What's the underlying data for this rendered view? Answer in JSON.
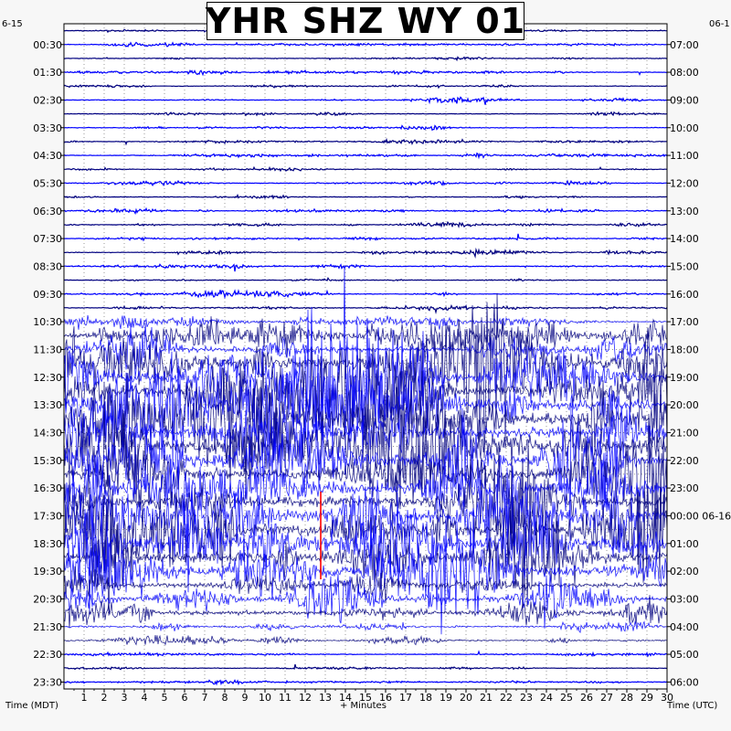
{
  "title": "YHR SHZ WY 01",
  "left_date": "6-15",
  "right_date": "06-1",
  "xlabel": "+ Minutes",
  "left_axis_label": "Time (MDT)",
  "right_axis_label": "Time (UTC)",
  "chart_data": {
    "type": "line",
    "title": "YHR SHZ WY 01",
    "xlabel": "+ Minutes",
    "ylabel_left": "Time (MDT)",
    "ylabel_right": "Time (UTC)",
    "x_ticks": [
      1,
      2,
      3,
      4,
      5,
      6,
      7,
      8,
      9,
      10,
      11,
      12,
      13,
      14,
      15,
      16,
      17,
      18,
      19,
      20,
      21,
      22,
      23,
      24,
      25,
      26,
      27,
      28,
      29,
      30
    ],
    "xlim": [
      0,
      30
    ],
    "minutes_per_trace": 30,
    "trace_count": 48,
    "left_ticks_mdt": [
      "00:30",
      "01:30",
      "02:30",
      "03:30",
      "04:30",
      "05:30",
      "06:30",
      "07:30",
      "08:30",
      "09:30",
      "10:30",
      "11:30",
      "12:30",
      "13:30",
      "14:30",
      "15:30",
      "16:30",
      "17:30",
      "18:30",
      "19:30",
      "20:30",
      "21:30",
      "22:30",
      "23:30"
    ],
    "right_ticks_utc": [
      "07:00",
      "08:00",
      "09:00",
      "10:00",
      "11:00",
      "12:00",
      "13:00",
      "14:00",
      "15:00",
      "16:00",
      "17:00",
      "18:00",
      "19:00",
      "20:00",
      "21:00",
      "22:00",
      "23:00",
      "00:00 06-16",
      "01:00",
      "02:00",
      "03:00",
      "04:00",
      "05:00",
      "06:00"
    ],
    "trace_colors": [
      "#000080",
      "#0000ff"
    ],
    "highlight_color": "#ff0000",
    "trace_activity": [
      "quiet",
      "quiet",
      "quiet",
      "quiet",
      "quiet",
      "quiet",
      "quiet",
      "quiet",
      "quiet",
      "quiet",
      "quiet",
      "quiet",
      "quiet",
      "quiet",
      "quiet",
      "quiet",
      "quiet",
      "quiet",
      "quiet",
      "quiet",
      "quiet",
      "moderate",
      "active",
      "active",
      "very active",
      "very active",
      "very active",
      "very active",
      "very active",
      "very active",
      "very active",
      "very active",
      "very active",
      "very active",
      "very active",
      "very active",
      "very active",
      "very active",
      "very active",
      "very active",
      "active",
      "active",
      "active",
      "moderate",
      "moderate",
      "quiet",
      "quiet",
      "quiet"
    ],
    "grid": true
  }
}
